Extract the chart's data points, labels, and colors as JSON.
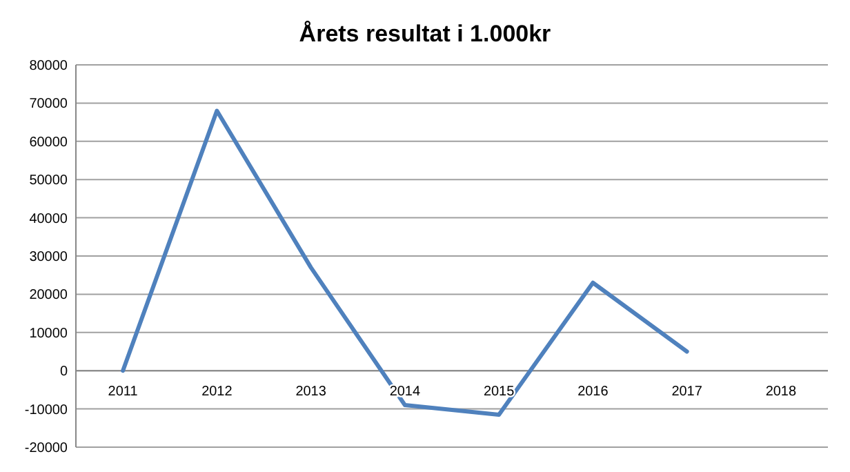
{
  "chart_data": {
    "type": "line",
    "title": "Årets resultat i 1.000kr",
    "categories": [
      "2011",
      "2012",
      "2013",
      "2014",
      "2015",
      "2016",
      "2017",
      "2018"
    ],
    "series": [
      {
        "color": "#4f81bd",
        "values": [
          0,
          68000,
          27000,
          -9000,
          -11500,
          23000,
          5000,
          null
        ]
      }
    ],
    "ylim": [
      -20000,
      80000
    ],
    "yticks": [
      -20000,
      -10000,
      0,
      10000,
      20000,
      30000,
      40000,
      50000,
      60000,
      70000,
      80000
    ],
    "grid": "y",
    "marker": "none",
    "line_style": "solid"
  }
}
